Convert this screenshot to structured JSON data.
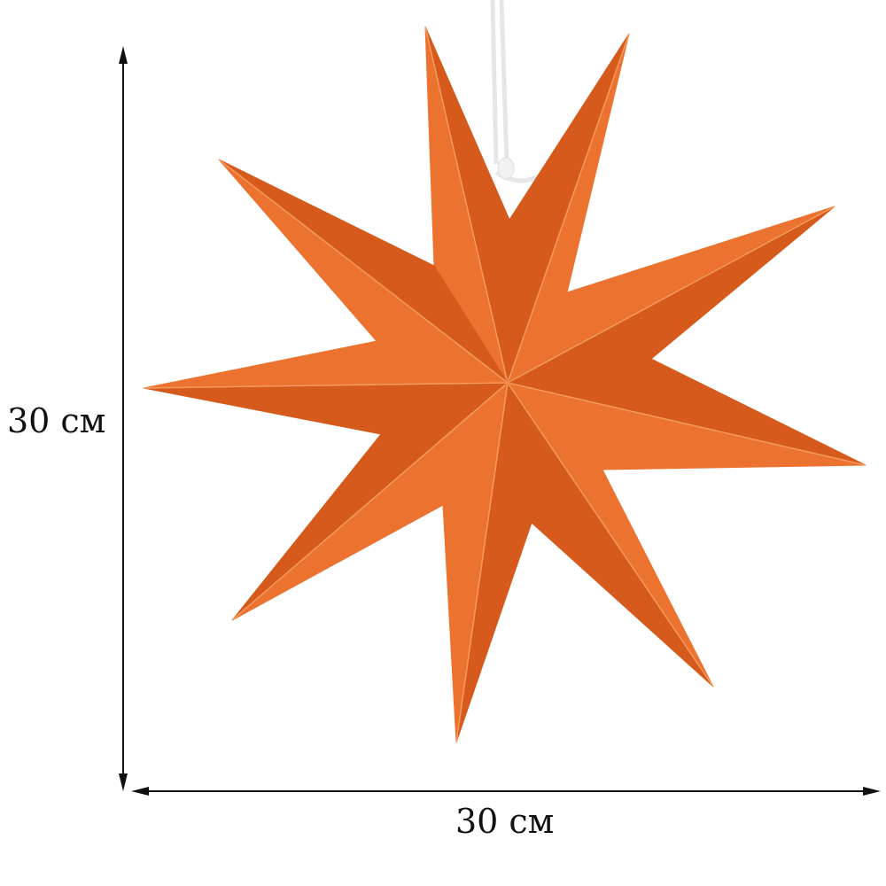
{
  "dimensions": {
    "height_label": "30 см",
    "width_label": "30 см"
  },
  "product": {
    "type": "nine-pointed paper star",
    "points": 9
  },
  "colors": {
    "star_light": "#ec722f",
    "star_dark": "#d65a1b",
    "crease": "#f59a5e",
    "cord": "#f4f4f4",
    "arrow": "#111111"
  }
}
